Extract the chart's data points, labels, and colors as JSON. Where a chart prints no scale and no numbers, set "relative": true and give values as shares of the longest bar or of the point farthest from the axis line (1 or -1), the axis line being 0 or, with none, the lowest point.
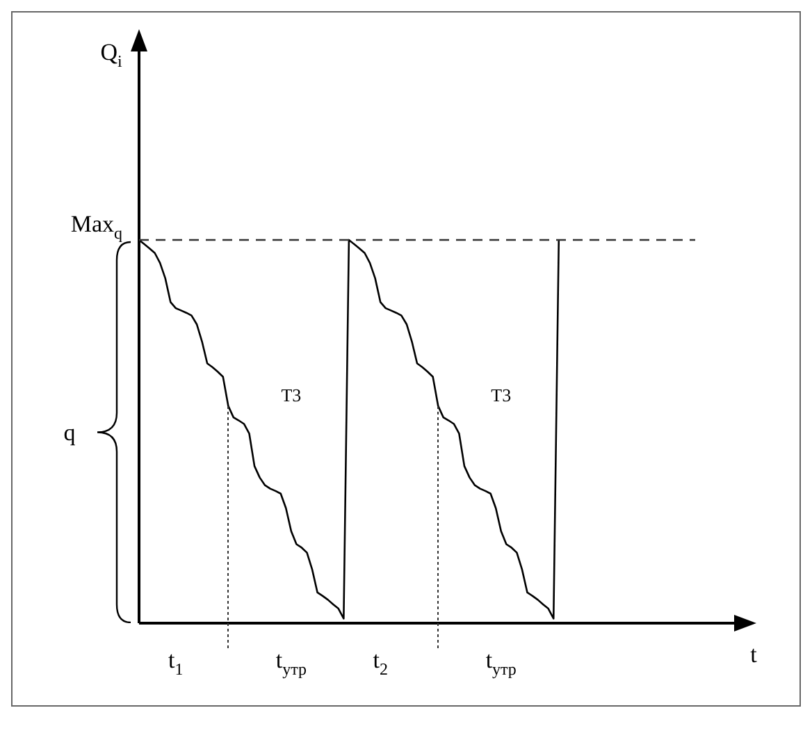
{
  "chart_data": {
    "type": "line",
    "relative": true,
    "xlabel": "t",
    "categories": [
      null,
      null,
      null,
      null,
      null,
      null,
      null,
      null,
      null,
      null,
      null,
      null,
      null,
      null,
      null,
      null,
      null,
      null,
      null,
      null,
      null,
      null,
      null,
      null,
      null,
      null,
      null,
      null,
      null,
      null,
      null,
      null,
      null,
      null,
      null,
      null,
      null,
      null,
      null,
      null,
      null,
      null,
      null,
      null,
      null,
      null,
      null,
      null,
      null,
      null,
      null,
      null,
      null,
      null,
      null,
      null,
      null,
      null,
      null,
      null,
      null,
      null,
      null,
      null,
      null,
      null,
      null,
      null,
      null,
      null,
      null,
      null,
      null,
      null,
      null,
      null,
      null,
      null,
      null,
      null,
      null,
      null,
      null,
      null,
      null,
      null,
      null,
      null,
      null,
      null,
      null,
      null,
      null,
      null,
      null,
      null,
      null,
      null,
      null,
      null,
      null,
      null,
      null,
      null,
      null,
      null,
      null
    ],
    "series": [
      {
        "color": "#000000",
        "values": [
          1,
          0.989,
          0.978,
          0.966,
          0.94,
          0.9,
          0.838,
          0.822,
          0.816,
          0.81,
          0.803,
          0.78,
          0.735,
          0.678,
          0.668,
          0.656,
          0.643,
          0.567,
          0.537,
          0.529,
          0.52,
          0.495,
          0.41,
          0.38,
          0.36,
          0.351,
          0.345,
          0.338,
          0.3,
          0.24,
          0.206,
          0.197,
          0.184,
          0.14,
          0.08,
          0.071,
          0.061,
          0.049,
          0.038,
          0.012,
          1,
          0.989,
          0.978,
          0.966,
          0.94,
          0.9,
          0.838,
          0.822,
          0.816,
          0.81,
          0.803,
          0.78,
          0.735,
          0.678,
          0.668,
          0.656,
          0.643,
          0.567,
          0.537,
          0.529,
          0.52,
          0.495,
          0.41,
          0.38,
          0.36,
          0.351,
          0.345,
          0.338,
          0.3,
          0.24,
          0.206,
          0.197,
          0.184,
          0.14,
          0.08,
          0.071,
          0.061,
          0.049,
          0.038,
          0.012,
          1,
          null,
          null,
          null,
          null,
          null,
          null,
          null,
          null,
          null,
          null,
          null,
          null,
          null,
          null,
          null,
          null,
          null,
          null,
          null,
          null,
          null,
          null,
          null,
          null,
          null,
          null
        ]
      }
    ],
    "ref_lines": [
      {
        "axis": "y",
        "value": 1,
        "label": "Max$_{q}$",
        "line_style": "dashed"
      }
    ],
    "annotations": [
      "Т3",
      "Т3",
      "q",
      "t$_{1}$",
      "t$_{утр}$",
      "t$_{2}$",
      "t$_{утр}$",
      "Q$_{i}$"
    ],
    "legend": false,
    "marker": "none",
    "line_style": "solid"
  }
}
